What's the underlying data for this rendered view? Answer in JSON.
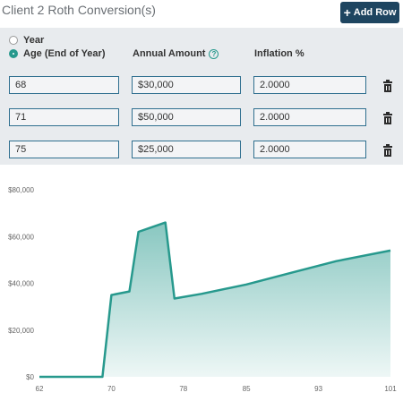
{
  "header": {
    "title": "Client 2 Roth Conversion(s)",
    "add_row_label": "Add Row"
  },
  "mode_options": {
    "year_label": "Year",
    "age_label": "Age (End of Year)",
    "selected": "age"
  },
  "columns": {
    "amount": "Annual Amount",
    "inflation": "Inflation %"
  },
  "rows": [
    {
      "age": "68",
      "amount": "$30,000",
      "inflation": "2.0000"
    },
    {
      "age": "71",
      "amount": "$50,000",
      "inflation": "2.0000"
    },
    {
      "age": "75",
      "amount": "$25,000",
      "inflation": "2.0000"
    }
  ],
  "colors": {
    "accent": "#27998d",
    "button": "#1e4560",
    "field_border": "#2f6f8f"
  },
  "chart_data": {
    "type": "area",
    "x_ticks": [
      "62",
      "70",
      "78",
      "85",
      "93",
      "101"
    ],
    "y_ticks": [
      "$0",
      "$20,000",
      "$40,000",
      "$60,000",
      "$80,000"
    ],
    "xlim": [
      62,
      101
    ],
    "ylim": [
      0,
      80000
    ],
    "grid": false,
    "x": [
      62,
      66,
      69,
      70,
      72,
      73,
      76,
      77,
      80,
      85,
      90,
      95,
      101
    ],
    "values": [
      0,
      0,
      0,
      35000,
      36500,
      62000,
      66000,
      33500,
      35500,
      39500,
      44500,
      49500,
      54000
    ]
  }
}
